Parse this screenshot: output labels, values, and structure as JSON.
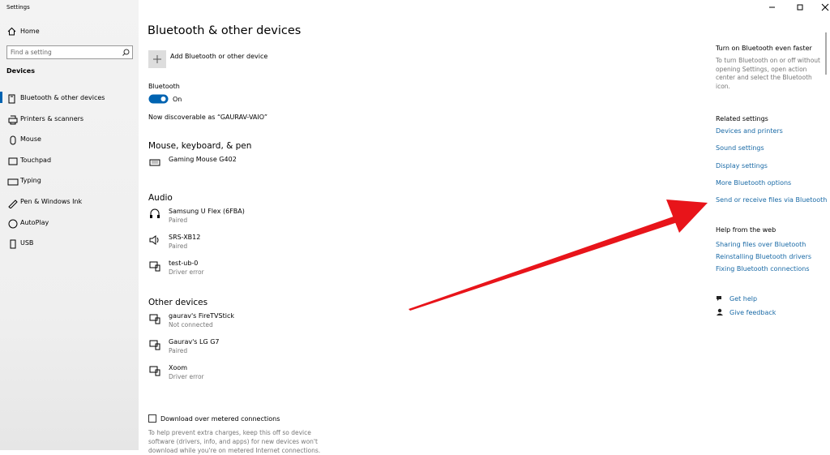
{
  "window": {
    "title": "Settings"
  },
  "sidebar": {
    "home": "Home",
    "search_placeholder": "Find a setting",
    "section": "Devices",
    "nav": [
      "Bluetooth & other devices",
      "Printers & scanners",
      "Mouse",
      "Touchpad",
      "Typing",
      "Pen & Windows Ink",
      "AutoPlay",
      "USB"
    ]
  },
  "main": {
    "title": "Bluetooth & other devices",
    "add_device": "Add Bluetooth or other device",
    "bluetooth": {
      "label": "Bluetooth",
      "state": "On",
      "discoverable": "Now discoverable as “GAURAV-VAIO”"
    },
    "groups": [
      {
        "title": "Mouse, keyboard, & pen",
        "devices": [
          {
            "name": "Gaming Mouse G402"
          }
        ]
      },
      {
        "title": "Audio",
        "devices": [
          {
            "name": "Samsung U Flex (6FBA)",
            "status": "Paired"
          },
          {
            "name": "SRS-XB12",
            "status": "Paired"
          },
          {
            "name": "test-ub-0",
            "status": "Driver error"
          }
        ]
      },
      {
        "title": "Other devices",
        "devices": [
          {
            "name": "gaurav's FireTVStick",
            "status": "Not connected"
          },
          {
            "name": "Gaurav's LG G7",
            "status": "Paired"
          },
          {
            "name": "Xoom",
            "status": "Driver error"
          }
        ]
      }
    ],
    "metered": {
      "label": "Download over metered connections",
      "description": "To help prevent extra charges, keep this off so device software (drivers, info, and apps) for new devices won't download while you're on metered Internet connections."
    }
  },
  "aside": {
    "tip_title": "Turn on Bluetooth even faster",
    "tip_text": "To turn Bluetooth on or off without opening Settings, open action center and select the Bluetooth icon.",
    "related_title": "Related settings",
    "related_links": [
      "Devices and printers",
      "Sound settings",
      "Display settings",
      "More Bluetooth options",
      "Send or receive files via Bluetooth"
    ],
    "help_title": "Help from the web",
    "help_links": [
      "Sharing files over Bluetooth",
      "Reinstalling Bluetooth drivers",
      "Fixing Bluetooth connections"
    ],
    "get_help": "Get help",
    "give_feedback": "Give feedback"
  }
}
